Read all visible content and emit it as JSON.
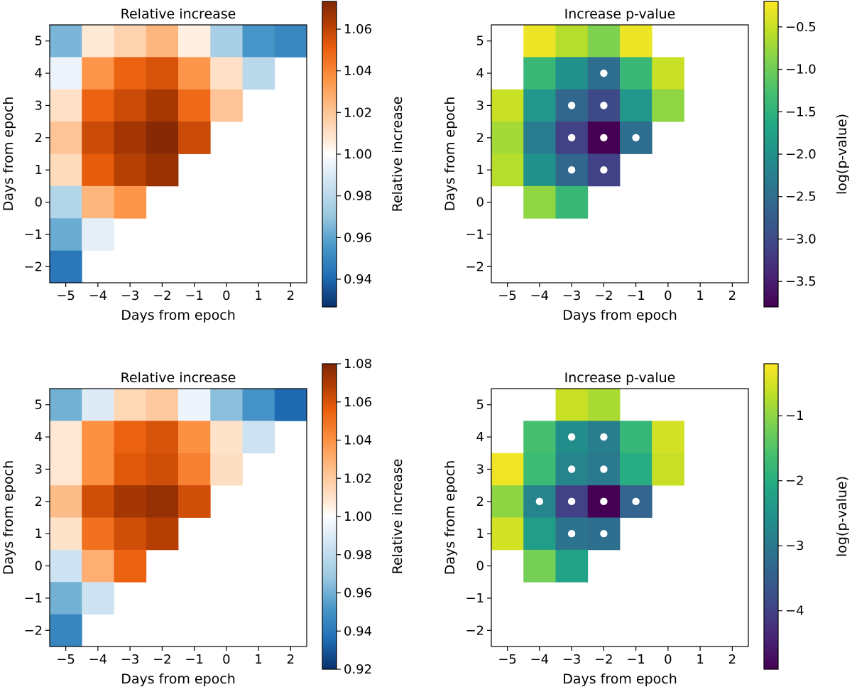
{
  "chart_data": [
    {
      "type": "heatmap",
      "panel": "top-left",
      "title": "Relative increase",
      "xlabel": "Days from epoch",
      "ylabel": "Days from epoch",
      "x": [
        -5,
        -4,
        -3,
        -2,
        -1,
        0,
        1,
        2
      ],
      "y": [
        5,
        4,
        3,
        2,
        1,
        0,
        -1,
        -2
      ],
      "x_ticks": [
        "−5",
        "−4",
        "−3",
        "−2",
        "−1",
        "0",
        "1",
        "2"
      ],
      "y_ticks": [
        "5",
        "4",
        "3",
        "2",
        "1",
        "0",
        "−1",
        "−2"
      ],
      "values": [
        [
          0.965,
          1.007,
          1.015,
          1.025,
          1.005,
          0.975,
          0.955,
          0.95
        ],
        [
          0.995,
          1.035,
          1.05,
          1.055,
          1.035,
          1.01,
          0.98,
          null
        ],
        [
          1.01,
          1.05,
          1.058,
          1.065,
          1.048,
          1.02,
          null,
          null
        ],
        [
          1.02,
          1.058,
          1.066,
          1.072,
          1.058,
          null,
          null,
          null
        ],
        [
          1.012,
          1.052,
          1.062,
          1.068,
          null,
          null,
          null,
          null
        ],
        [
          0.978,
          1.025,
          1.035,
          null,
          null,
          null,
          null,
          null
        ],
        [
          0.962,
          0.993,
          null,
          null,
          null,
          null,
          null,
          null
        ],
        [
          0.945,
          null,
          null,
          null,
          null,
          null,
          null,
          null
        ]
      ],
      "colormap": "RdBu_r",
      "color_range": [
        0.9267,
        1.0733
      ],
      "colorbar_label": "Relative increase",
      "colorbar_ticks": [
        0.94,
        0.96,
        0.98,
        1.0,
        1.02,
        1.04,
        1.06
      ],
      "colorbar_tick_labels": [
        "0.94",
        "0.96",
        "0.98",
        "1.00",
        "1.02",
        "1.04",
        "1.06"
      ]
    },
    {
      "type": "heatmap",
      "panel": "top-right",
      "title": "Increase p-value",
      "xlabel": "Days from epoch",
      "ylabel": "Days from epoch",
      "x": [
        -5,
        -4,
        -3,
        -2,
        -1,
        0,
        1,
        2
      ],
      "y": [
        5,
        4,
        3,
        2,
        1,
        0,
        -1,
        -2
      ],
      "x_ticks": [
        "−5",
        "−4",
        "−3",
        "−2",
        "−1",
        "0",
        "1",
        "2"
      ],
      "y_ticks": [
        "5",
        "4",
        "3",
        "2",
        "1",
        "0",
        "−1",
        "−2"
      ],
      "values": [
        [
          null,
          -0.3,
          -0.6,
          -0.9,
          -0.3,
          null,
          null,
          null
        ],
        [
          null,
          -1.4,
          -2.0,
          -2.5,
          -1.4,
          -0.5,
          null,
          null
        ],
        [
          -0.5,
          -1.9,
          -2.6,
          -3.0,
          -1.9,
          -0.8,
          null,
          null
        ],
        [
          -0.7,
          -2.3,
          -3.1,
          -3.8,
          -2.5,
          null,
          null,
          null
        ],
        [
          -0.6,
          -2.0,
          -2.6,
          -3.1,
          null,
          null,
          null,
          null
        ],
        [
          null,
          -0.8,
          -1.4,
          null,
          null,
          null,
          null,
          null
        ],
        [
          null,
          null,
          null,
          null,
          null,
          null,
          null,
          null
        ],
        [
          null,
          null,
          null,
          null,
          null,
          null,
          null,
          null
        ]
      ],
      "significant_markers": [
        [
          -2,
          4
        ],
        [
          -3,
          3
        ],
        [
          -2,
          3
        ],
        [
          -3,
          2
        ],
        [
          -2,
          2
        ],
        [
          -1,
          2
        ],
        [
          -3,
          1
        ],
        [
          -2,
          1
        ]
      ],
      "colormap": "viridis",
      "color_range": [
        -3.8,
        -0.2
      ],
      "colorbar_label": "log(p-value)",
      "colorbar_ticks": [
        -3.5,
        -3.0,
        -2.5,
        -2.0,
        -1.5,
        -1.0,
        -0.5
      ],
      "colorbar_tick_labels": [
        "−3.5",
        "−3.0",
        "−2.5",
        "−2.0",
        "−1.5",
        "−1.0",
        "−0.5"
      ]
    },
    {
      "type": "heatmap",
      "panel": "bottom-left",
      "title": "Relative increase",
      "xlabel": "Days from epoch",
      "ylabel": "Days from epoch",
      "x": [
        -5,
        -4,
        -3,
        -2,
        -1,
        0,
        1,
        2
      ],
      "y": [
        5,
        4,
        3,
        2,
        1,
        0,
        -1,
        -2
      ],
      "x_ticks": [
        "−5",
        "−4",
        "−3",
        "−2",
        "−1",
        "0",
        "1",
        "2"
      ],
      "y_ticks": [
        "5",
        "4",
        "3",
        "2",
        "1",
        "0",
        "−1",
        "−2"
      ],
      "values": [
        [
          0.96,
          0.99,
          1.015,
          1.02,
          0.995,
          0.965,
          0.95,
          0.935
        ],
        [
          1.008,
          1.04,
          1.055,
          1.06,
          1.04,
          1.01,
          0.985,
          null
        ],
        [
          1.008,
          1.04,
          1.058,
          1.062,
          1.045,
          1.012,
          null,
          null
        ],
        [
          1.025,
          1.062,
          1.072,
          1.075,
          1.062,
          null,
          null,
          null
        ],
        [
          1.01,
          1.05,
          1.062,
          1.068,
          null,
          null,
          null,
          null
        ],
        [
          0.985,
          1.03,
          1.055,
          null,
          null,
          null,
          null,
          null
        ],
        [
          0.96,
          0.985,
          null,
          null,
          null,
          null,
          null,
          null
        ],
        [
          0.945,
          null,
          null,
          null,
          null,
          null,
          null,
          null
        ]
      ],
      "colormap": "RdBu_r",
      "color_range": [
        0.92,
        1.08
      ],
      "colorbar_label": "Relative increase",
      "colorbar_ticks": [
        0.92,
        0.94,
        0.96,
        0.98,
        1.0,
        1.02,
        1.04,
        1.06,
        1.08
      ],
      "colorbar_tick_labels": [
        "0.92",
        "0.94",
        "0.96",
        "0.98",
        "1.00",
        "1.02",
        "1.04",
        "1.06",
        "1.08"
      ]
    },
    {
      "type": "heatmap",
      "panel": "bottom-right",
      "title": "Increase p-value",
      "xlabel": "Days from epoch",
      "ylabel": "Days from epoch",
      "x": [
        -5,
        -4,
        -3,
        -2,
        -1,
        0,
        1,
        2
      ],
      "y": [
        5,
        4,
        3,
        2,
        1,
        0,
        -1,
        -2
      ],
      "x_ticks": [
        "−5",
        "−4",
        "−3",
        "−2",
        "−1",
        "0",
        "1",
        "2"
      ],
      "y_ticks": [
        "5",
        "4",
        "3",
        "2",
        "1",
        "0",
        "−1",
        "−2"
      ],
      "values": [
        [
          null,
          null,
          -0.6,
          -0.8,
          null,
          null,
          null,
          null
        ],
        [
          null,
          -1.6,
          -2.6,
          -2.9,
          -1.8,
          -0.5,
          null,
          null
        ],
        [
          -0.3,
          -1.7,
          -2.8,
          -3.0,
          -2.0,
          -0.6,
          null,
          null
        ],
        [
          -1.0,
          -2.8,
          -4.0,
          -4.9,
          -3.4,
          null,
          null,
          null
        ],
        [
          -0.5,
          -2.3,
          -3.1,
          -3.2,
          null,
          null,
          null,
          null
        ],
        [
          null,
          -1.2,
          -2.2,
          null,
          null,
          null,
          null,
          null
        ],
        [
          null,
          null,
          null,
          null,
          null,
          null,
          null,
          null
        ],
        [
          null,
          null,
          null,
          null,
          null,
          null,
          null,
          null
        ]
      ],
      "significant_markers": [
        [
          -3,
          4
        ],
        [
          -2,
          4
        ],
        [
          -3,
          3
        ],
        [
          -2,
          3
        ],
        [
          -4,
          2
        ],
        [
          -3,
          2
        ],
        [
          -2,
          2
        ],
        [
          -1,
          2
        ],
        [
          -3,
          1
        ],
        [
          -2,
          1
        ]
      ],
      "colormap": "viridis",
      "color_range": [
        -4.9,
        -0.2
      ],
      "colorbar_label": "log(p-value)",
      "colorbar_ticks": [
        -4,
        -3,
        -2,
        -1
      ],
      "colorbar_tick_labels": [
        "−4",
        "−3",
        "−2",
        "−1"
      ]
    }
  ]
}
